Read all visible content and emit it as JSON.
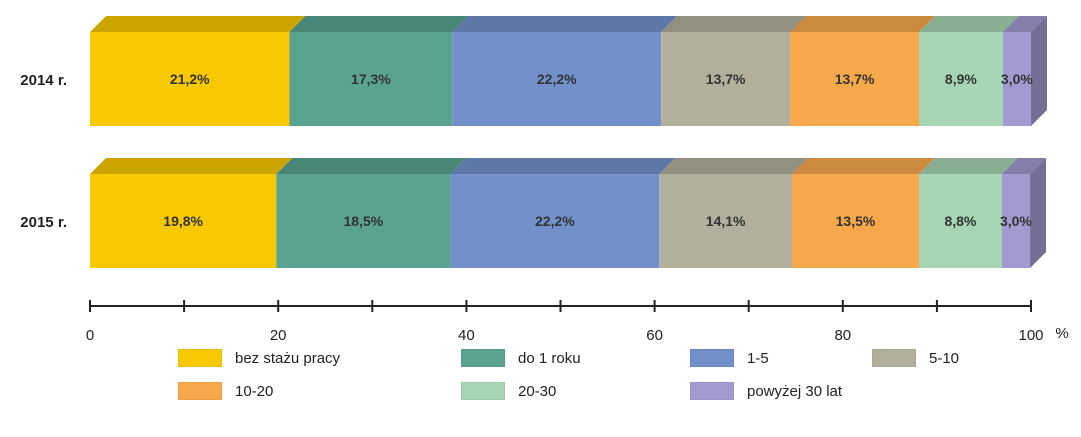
{
  "chart_data": {
    "type": "bar",
    "orientation": "horizontal",
    "stacked": true,
    "percent_stacked": true,
    "three_d": true,
    "categories": [
      "2014 r.",
      "2015 r."
    ],
    "series": [
      {
        "name": "bez stażu pracy",
        "color": "#f8c800",
        "values": [
          21.2,
          19.8
        ],
        "labels": [
          "21,2%",
          "19,8%"
        ]
      },
      {
        "name": "do 1 roku",
        "color": "#5aa391",
        "values": [
          17.3,
          18.5
        ],
        "labels": [
          "17,3%",
          "18,5%"
        ]
      },
      {
        "name": "1-5",
        "color": "#7291cb",
        "values": [
          22.2,
          22.2
        ],
        "labels": [
          "22,2%",
          "22,2%"
        ]
      },
      {
        "name": "5-10",
        "color": "#b2b09c",
        "values": [
          13.7,
          14.1
        ],
        "labels": [
          "13,7%",
          "14,1%"
        ]
      },
      {
        "name": "10-20",
        "color": "#f7a84a",
        "values": [
          13.7,
          13.5
        ],
        "labels": [
          "13,7%",
          "13,5%"
        ]
      },
      {
        "name": "20-30",
        "color": "#a6d6b3",
        "values": [
          8.9,
          8.8
        ],
        "labels": [
          "8,9%",
          "8,8%"
        ]
      },
      {
        "name": "powyżej 30 lat",
        "color": "#a29ad0",
        "values": [
          3.0,
          3.0
        ],
        "labels": [
          "3,0%",
          "3,0%"
        ]
      }
    ],
    "x_axis": {
      "range": [
        0,
        100
      ],
      "ticks": [
        "0",
        "20",
        "40",
        "60",
        "80",
        "100"
      ],
      "tick_values": [
        0,
        20,
        40,
        60,
        80,
        100
      ],
      "minor_tick_step": 10,
      "unit": "%"
    },
    "legend_position": "bottom",
    "grid": false
  }
}
